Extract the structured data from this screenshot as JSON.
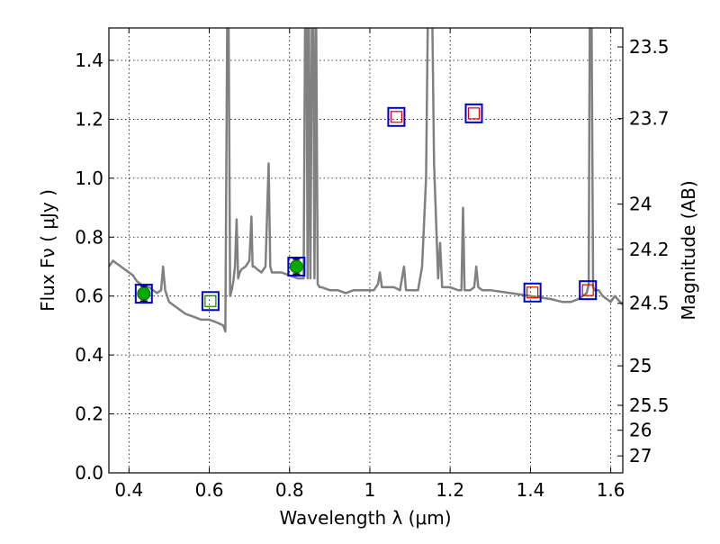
{
  "chart_data": {
    "type": "scatter",
    "xlabel": "Wavelength  λ (μm)",
    "ylabel": "Flux  Fν  ( μJy )",
    "ylabel_right": "Magnitude (AB)",
    "xlim": [
      0.35,
      1.63
    ],
    "ylim": [
      0.0,
      1.51
    ],
    "grid": true,
    "x_ticks": [
      0.4,
      0.6,
      0.8,
      1.0,
      1.2,
      1.4,
      1.6
    ],
    "x_tick_labels": [
      "0.4",
      "0.6",
      "0.8",
      "1",
      "1.2",
      "1.4",
      "1.6"
    ],
    "y_ticks": [
      0.0,
      0.2,
      0.4,
      0.6,
      0.8,
      1.0,
      1.2,
      1.4
    ],
    "y_tick_labels": [
      "0.0",
      "0.2",
      "0.4",
      "0.6",
      "0.8",
      "1.0",
      "1.2",
      "1.4"
    ],
    "right_ticks": [
      {
        "mag": 23.5,
        "label": "23.5"
      },
      {
        "mag": 23.7,
        "label": "23.7"
      },
      {
        "mag": 24.0,
        "label": "24"
      },
      {
        "mag": 24.2,
        "label": "24.2"
      },
      {
        "mag": 24.5,
        "label": "24.5"
      },
      {
        "mag": 25.0,
        "label": "25"
      },
      {
        "mag": 25.5,
        "label": "25.5"
      },
      {
        "mag": 26.0,
        "label": "26"
      },
      {
        "mag": 27.0,
        "label": "27"
      }
    ],
    "spectrum": {
      "color": "#808080",
      "x": [
        0.35,
        0.36,
        0.37,
        0.38,
        0.39,
        0.4,
        0.41,
        0.42,
        0.43,
        0.44,
        0.45,
        0.46,
        0.47,
        0.48,
        0.485,
        0.49,
        0.5,
        0.52,
        0.54,
        0.56,
        0.58,
        0.6,
        0.62,
        0.635,
        0.64,
        0.645,
        0.648,
        0.652,
        0.656,
        0.66,
        0.664,
        0.668,
        0.672,
        0.676,
        0.68,
        0.69,
        0.7,
        0.705,
        0.708,
        0.712,
        0.72,
        0.73,
        0.74,
        0.748,
        0.752,
        0.756,
        0.76,
        0.78,
        0.8,
        0.82,
        0.835,
        0.839,
        0.842,
        0.845,
        0.848,
        0.852,
        0.856,
        0.859,
        0.862,
        0.866,
        0.87,
        0.875,
        0.88,
        0.9,
        0.92,
        0.94,
        0.96,
        0.98,
        1.0,
        1.01,
        1.02,
        1.025,
        1.03,
        1.04,
        1.06,
        1.075,
        1.085,
        1.09,
        1.1,
        1.12,
        1.13,
        1.14,
        1.145,
        1.15,
        1.155,
        1.16,
        1.17,
        1.175,
        1.18,
        1.2,
        1.22,
        1.228,
        1.232,
        1.236,
        1.24,
        1.25,
        1.26,
        1.265,
        1.27,
        1.28,
        1.3,
        1.35,
        1.4,
        1.45,
        1.48,
        1.5,
        1.52,
        1.53,
        1.54,
        1.545,
        1.548,
        1.552,
        1.556,
        1.56,
        1.57,
        1.58,
        1.59,
        1.6,
        1.61,
        1.63
      ],
      "y": [
        0.7,
        0.72,
        0.71,
        0.7,
        0.69,
        0.68,
        0.67,
        0.65,
        0.64,
        0.63,
        0.63,
        0.62,
        0.61,
        0.62,
        0.7,
        0.62,
        0.58,
        0.56,
        0.54,
        0.53,
        0.52,
        0.52,
        0.51,
        0.5,
        0.48,
        1.6,
        1.6,
        0.6,
        0.62,
        0.65,
        0.7,
        0.86,
        0.66,
        0.68,
        0.69,
        0.7,
        0.72,
        0.87,
        0.7,
        0.7,
        0.69,
        0.68,
        0.7,
        1.05,
        0.7,
        0.68,
        0.68,
        0.68,
        0.67,
        0.66,
        0.66,
        1.6,
        1.6,
        0.66,
        1.6,
        0.66,
        1.6,
        1.6,
        0.66,
        1.6,
        0.64,
        0.63,
        0.63,
        0.62,
        0.62,
        0.61,
        0.62,
        0.62,
        0.62,
        0.62,
        0.64,
        0.68,
        0.63,
        0.63,
        0.63,
        0.62,
        0.7,
        0.62,
        0.62,
        0.62,
        0.7,
        1.0,
        1.6,
        1.6,
        1.6,
        1.05,
        0.66,
        0.78,
        0.63,
        0.63,
        0.62,
        0.62,
        0.9,
        0.62,
        0.62,
        0.62,
        0.63,
        0.7,
        0.63,
        0.62,
        0.62,
        0.61,
        0.6,
        0.59,
        0.58,
        0.58,
        0.59,
        0.6,
        0.61,
        0.64,
        1.6,
        1.6,
        0.63,
        0.62,
        0.62,
        0.6,
        0.59,
        0.58,
        0.6,
        0.57
      ]
    },
    "series": [
      {
        "color": "#0000cc",
        "marker": "square-open-large",
        "x": [
          0.437,
          0.603,
          0.817,
          1.066,
          1.259,
          1.405,
          1.543
        ],
        "y": [
          0.608,
          0.583,
          0.7,
          1.208,
          1.22,
          0.612,
          0.62
        ]
      },
      {
        "color": "#dd0000",
        "marker": "square-open-small",
        "x": [
          1.066,
          1.259,
          1.405,
          1.543
        ],
        "y": [
          1.208,
          1.22,
          0.612,
          0.62
        ]
      },
      {
        "color": "#008800",
        "marker": "square-open-small",
        "x": [
          0.603
        ],
        "y": [
          0.583
        ]
      },
      {
        "color": "#00aa00",
        "marker": "filled-circle",
        "x": [
          0.437,
          0.817
        ],
        "y": [
          0.608,
          0.7
        ],
        "yerr": [
          0.025,
          0.025
        ]
      }
    ]
  }
}
